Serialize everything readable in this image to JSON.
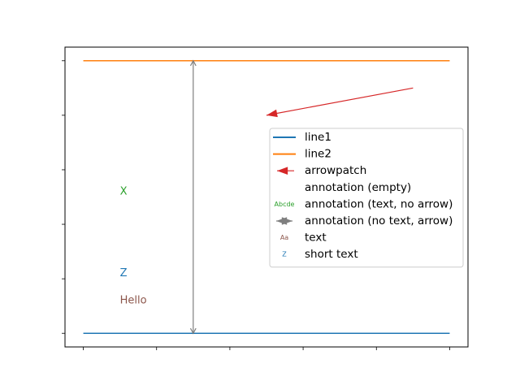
{
  "chart_data": {
    "type": "line",
    "title": "",
    "xlabel": "",
    "ylabel": "",
    "xlim": [
      -0.25,
      5.25
    ],
    "ylim": [
      -0.25,
      5.25
    ],
    "xticks": [
      0,
      1,
      2,
      3,
      4,
      5
    ],
    "yticks": [
      0,
      1,
      2,
      3,
      4,
      5
    ],
    "tick_labels_visible": false,
    "grid": false,
    "series": [
      {
        "name": "line1",
        "color": "#1f77b4",
        "x": [
          0,
          5
        ],
        "y": [
          0,
          0
        ]
      },
      {
        "name": "line2",
        "color": "#ff7f0e",
        "x": [
          0,
          5
        ],
        "y": [
          5,
          5
        ]
      }
    ],
    "arrowpatch": {
      "name": "arrowpatch",
      "color": "#d62728",
      "from": [
        4.5,
        4.5
      ],
      "to": [
        2.5,
        4.0
      ]
    },
    "annotation_arrow": {
      "color": "#7f7f7f",
      "from": [
        1.5,
        0
      ],
      "to": [
        1.5,
        5
      ]
    },
    "texts": [
      {
        "text": "X",
        "x": 0.5,
        "y": 2.6,
        "color": "#2ca02c",
        "size": 10
      },
      {
        "text": "Z",
        "x": 0.5,
        "y": 1.1,
        "color": "#1f77b4",
        "size": 10
      },
      {
        "text": "Hello",
        "x": 0.5,
        "y": 0.6,
        "color": "#8c564b",
        "size": 10
      }
    ],
    "legend": {
      "position": "right",
      "entries": [
        {
          "label": "line1",
          "marker": "line",
          "color": "#1f77b4"
        },
        {
          "label": "line2",
          "marker": "line",
          "color": "#ff7f0e"
        },
        {
          "label": "arrowpatch",
          "marker": "arrow-left",
          "color": "#d62728"
        },
        {
          "label": "annotation (empty)",
          "marker": "none",
          "color": ""
        },
        {
          "label": "annotation (text, no arrow)",
          "marker": "text",
          "marker_text": "Abcde",
          "color": "#2ca02c"
        },
        {
          "label": "annotation (no text, arrow)",
          "marker": "arrow-both",
          "color": "#7f7f7f"
        },
        {
          "label": "text",
          "marker": "text",
          "marker_text": "Aa",
          "color": "#8c564b"
        },
        {
          "label": "short text",
          "marker": "text",
          "marker_text": "Z",
          "color": "#1f77b4"
        }
      ]
    }
  }
}
